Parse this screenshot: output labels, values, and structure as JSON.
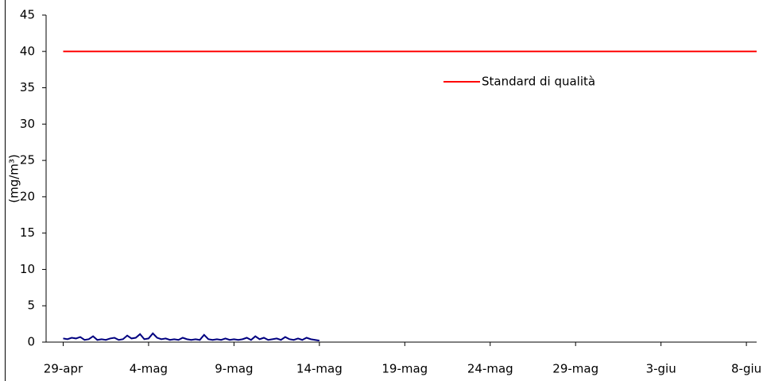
{
  "chart_data": {
    "type": "line",
    "y_label": "(mg/m³)",
    "xlim": [
      -1,
      40.6
    ],
    "ylim": [
      0,
      45
    ],
    "yticks": [
      0,
      5,
      10,
      15,
      20,
      25,
      30,
      35,
      40,
      45
    ],
    "xticks": [
      {
        "value": 0,
        "label": "29-apr"
      },
      {
        "value": 5,
        "label": "4-mag"
      },
      {
        "value": 10,
        "label": "9-mag"
      },
      {
        "value": 15,
        "label": "14-mag"
      },
      {
        "value": 20,
        "label": "19-mag"
      },
      {
        "value": 25,
        "label": "24-mag"
      },
      {
        "value": 30,
        "label": "29-mag"
      },
      {
        "value": 35,
        "label": "3-giu"
      },
      {
        "value": 40,
        "label": "8-giu"
      }
    ],
    "legend": "inside-top-right",
    "series": [
      {
        "name": "Standard di qualità",
        "color": "#ff0000",
        "x": [
          0,
          40.6
        ],
        "values": [
          40,
          40
        ]
      },
      {
        "color": "#000080",
        "x": [
          0,
          0.25,
          0.5,
          0.75,
          1,
          1.25,
          1.5,
          1.75,
          2,
          2.25,
          2.5,
          2.75,
          3,
          3.25,
          3.5,
          3.75,
          4,
          4.25,
          4.5,
          4.75,
          5,
          5.25,
          5.5,
          5.75,
          6,
          6.25,
          6.5,
          6.75,
          7,
          7.25,
          7.5,
          7.75,
          8,
          8.25,
          8.5,
          8.75,
          9,
          9.25,
          9.5,
          9.75,
          10,
          10.25,
          10.5,
          10.75,
          11,
          11.25,
          11.5,
          11.75,
          12,
          12.25,
          12.5,
          12.75,
          13,
          13.25,
          13.5,
          13.75,
          14,
          14.25,
          14.5,
          14.75,
          15
        ],
        "values": [
          0.5,
          0.4,
          0.6,
          0.5,
          0.7,
          0.3,
          0.4,
          0.8,
          0.3,
          0.4,
          0.3,
          0.5,
          0.6,
          0.3,
          0.4,
          0.9,
          0.5,
          0.6,
          1.1,
          0.4,
          0.5,
          1.2,
          0.6,
          0.4,
          0.5,
          0.3,
          0.4,
          0.3,
          0.6,
          0.4,
          0.3,
          0.4,
          0.3,
          1.0,
          0.4,
          0.3,
          0.4,
          0.3,
          0.5,
          0.3,
          0.4,
          0.3,
          0.4,
          0.6,
          0.3,
          0.8,
          0.4,
          0.6,
          0.3,
          0.4,
          0.5,
          0.3,
          0.7,
          0.4,
          0.3,
          0.5,
          0.3,
          0.6,
          0.4,
          0.3,
          0.2
        ]
      }
    ]
  }
}
